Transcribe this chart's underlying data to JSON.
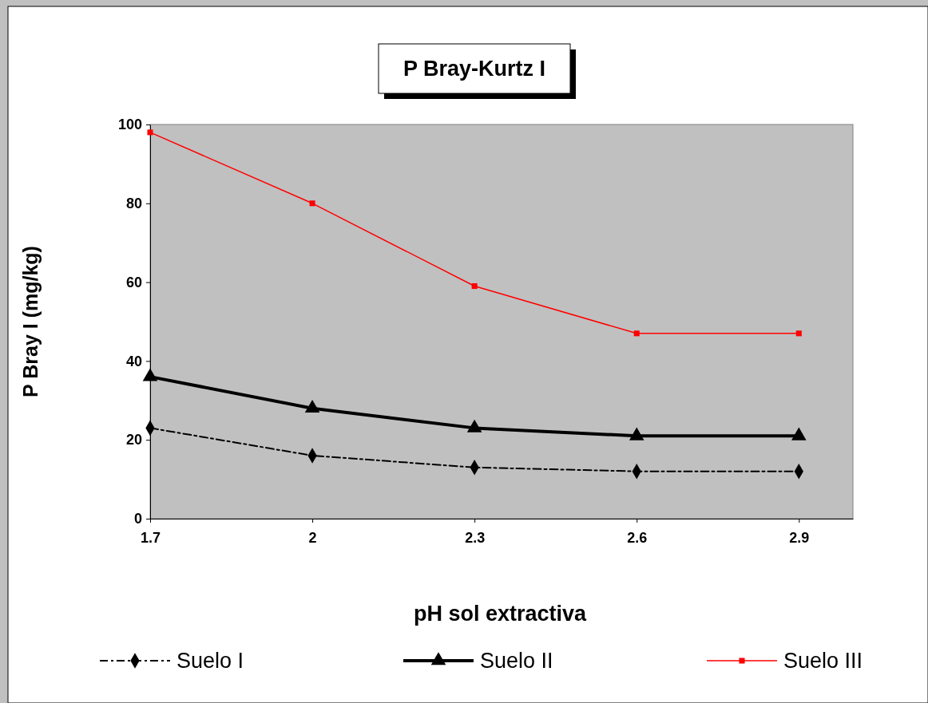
{
  "chart_data": {
    "type": "line",
    "title": "P Bray-Kurtz I",
    "xlabel": "pH sol extractiva",
    "ylabel": "P Bray I (mg/kg)",
    "x": [
      1.7,
      2,
      2.3,
      2.6,
      2.9
    ],
    "xlim": [
      1.7,
      3.0
    ],
    "xticks": [
      1.7,
      2,
      2.3,
      2.6,
      2.9
    ],
    "ylim": [
      0,
      100
    ],
    "yticks": [
      0,
      20,
      40,
      60,
      80,
      100
    ],
    "grid": false,
    "legend": "bottom",
    "series": [
      {
        "name": "Suelo I",
        "color": "#000000",
        "values": [
          23,
          16,
          13,
          12,
          12
        ],
        "marker": "diamond",
        "line_style": "dashed"
      },
      {
        "name": "Suelo II",
        "color": "#000000",
        "values": [
          36,
          28,
          23,
          21,
          21
        ],
        "marker": "triangle",
        "line_style": "solid"
      },
      {
        "name": "Suelo III",
        "color": "#ff0000",
        "values": [
          98,
          80,
          59,
          47,
          47
        ],
        "marker": "square",
        "line_style": "solid"
      }
    ]
  }
}
